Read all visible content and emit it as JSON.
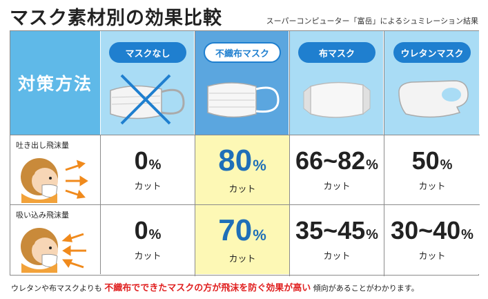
{
  "title": "マスク素材別の効果比較",
  "subtitle": "スーパーコンピューター「富岳」によるシュミレーション結果",
  "header_left": "対策方法",
  "rows": [
    {
      "label": "吐き出し飛沫量",
      "icon": "face-exhale-icon"
    },
    {
      "label": "吸い込み飛沫量",
      "icon": "face-inhale-icon"
    }
  ],
  "cut_label": "カット",
  "percent_sign": "%",
  "columns": [
    {
      "label": "マスクなし",
      "icon": "mask-crossed-out-icon",
      "exhale": "0",
      "inhale": "0"
    },
    {
      "label": "不織布マスク",
      "icon": "pleated-mask-icon",
      "exhale": "80",
      "inhale": "70"
    },
    {
      "label": "布マスク",
      "icon": "cloth-mask-icon",
      "exhale": "66~82",
      "inhale": "35~45"
    },
    {
      "label": "ウレタンマスク",
      "icon": "urethane-mask-icon",
      "exhale": "50",
      "inhale": "30~40"
    }
  ],
  "footer": {
    "pre": "ウレタンや布マスクよりも",
    "emphasis": "不織布でできたマスクの方が飛沫を防ぐ効果が高い",
    "post": "傾向があることがわかります。"
  },
  "colors": {
    "accent": "#1f7fcf",
    "header_bg": "#a9dcf5",
    "highlight": "#fdf8b5",
    "emphasis_red": "#e02020"
  }
}
